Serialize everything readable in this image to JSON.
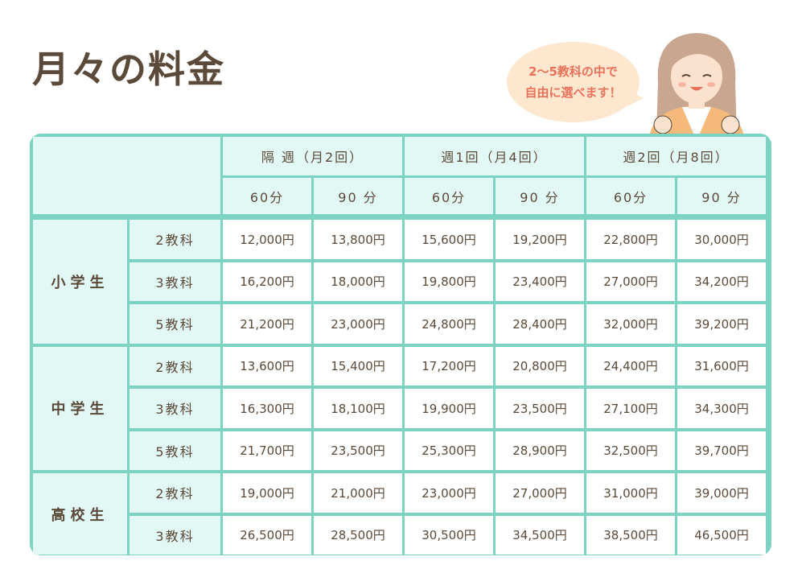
{
  "page": {
    "title": "月々の料金",
    "bubble_line1": "2〜5教科の中で",
    "bubble_line2": "自由に選べます！"
  },
  "table": {
    "frequencies": [
      "隔 週（月2回）",
      "週1回（月4回）",
      "週2回（月8回）"
    ],
    "durations": [
      "60分",
      "90 分",
      "60分",
      "90 分",
      "60分",
      "90 分"
    ],
    "groups": [
      {
        "name": "小学生",
        "rows": [
          {
            "subject": "2教科",
            "prices": [
              "12,000円",
              "13,800円",
              "15,600円",
              "19,200円",
              "22,800円",
              "30,000円"
            ]
          },
          {
            "subject": "3教科",
            "prices": [
              "16,200円",
              "18,000円",
              "19,800円",
              "23,400円",
              "27,000円",
              "34,200円"
            ]
          },
          {
            "subject": "5教科",
            "prices": [
              "21,200円",
              "23,000円",
              "24,800円",
              "28,400円",
              "32,000円",
              "39,200円"
            ]
          }
        ]
      },
      {
        "name": "中学生",
        "rows": [
          {
            "subject": "2教科",
            "prices": [
              "13,600円",
              "15,400円",
              "17,200円",
              "20,800円",
              "24,400円",
              "31,600円"
            ]
          },
          {
            "subject": "3教科",
            "prices": [
              "16,300円",
              "18,100円",
              "19,900円",
              "23,500円",
              "27,100円",
              "34,300円"
            ]
          },
          {
            "subject": "5教科",
            "prices": [
              "21,700円",
              "23,500円",
              "25,300円",
              "28,900円",
              "32,500円",
              "39,700円"
            ]
          }
        ]
      },
      {
        "name": "高校生",
        "rows": [
          {
            "subject": "2教科",
            "prices": [
              "19,000円",
              "21,000円",
              "23,000円",
              "27,000円",
              "31,000円",
              "39,000円"
            ]
          },
          {
            "subject": "3教科",
            "prices": [
              "26,500円",
              "28,500円",
              "30,500円",
              "34,500円",
              "38,500円",
              "46,500円"
            ]
          }
        ]
      }
    ]
  },
  "colors": {
    "border": "#7dd3c1",
    "header_bg": "#e2f8f4",
    "text": "#5b4a3a",
    "bubble_bg": "#fde7cf",
    "bubble_text": "#e8735a"
  },
  "icons": {
    "character": "girl-illustration-icon"
  }
}
